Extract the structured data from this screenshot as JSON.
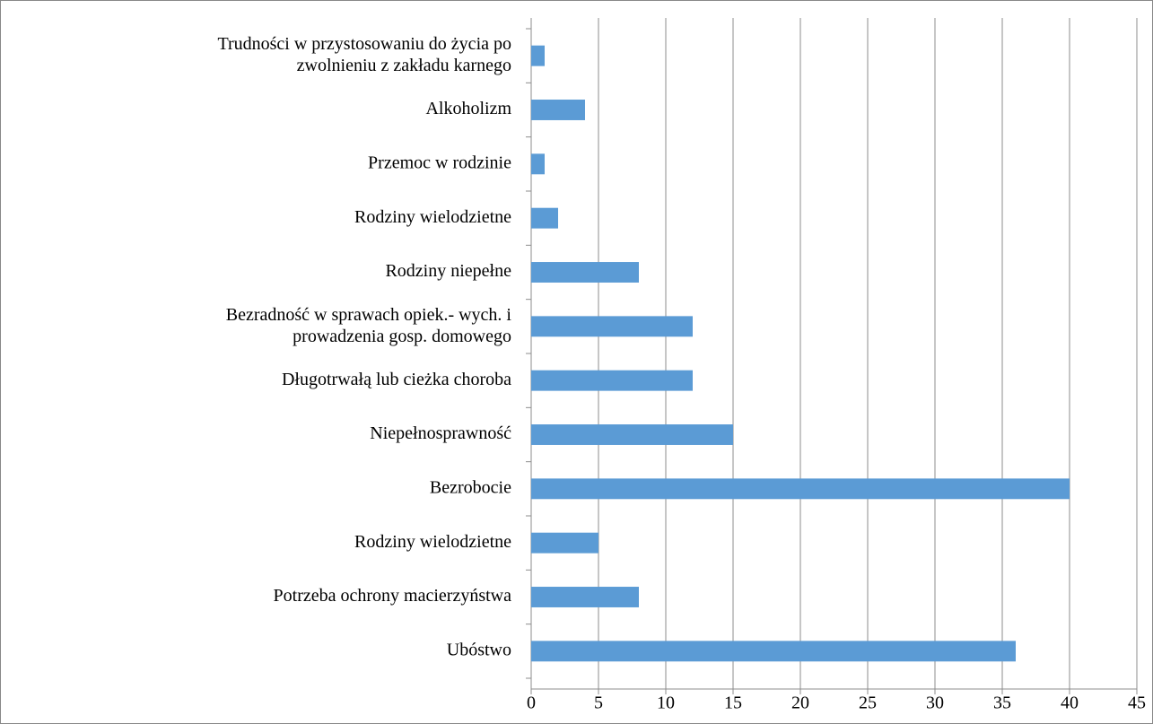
{
  "chart_data": {
    "type": "bar",
    "orientation": "horizontal",
    "categories": [
      "Ubóstwo",
      "Potrzeba ochrony macierzyństwa",
      "Rodziny wielodzietne",
      "Bezrobocie",
      "Niepełnosprawność",
      "Długotrwałą lub cieżka choroba",
      "Bezradność w sprawach opiek.- wych. i\nprowadzenia gosp. domowego",
      "Rodziny niepełne",
      "Rodziny wielodzietne",
      "Przemoc w rodzinie",
      "Alkoholizm",
      "Trudności w przystosowaniu do życia po\nzwolnieniu z zakładu karnego"
    ],
    "values": [
      36,
      8,
      5,
      40,
      15,
      12,
      12,
      8,
      2,
      1,
      4,
      1
    ],
    "color": "#5b9bd5",
    "xlim": [
      0,
      45
    ],
    "xticks": [
      0,
      5,
      10,
      15,
      20,
      25,
      30,
      35,
      40,
      45
    ],
    "grid": true
  }
}
